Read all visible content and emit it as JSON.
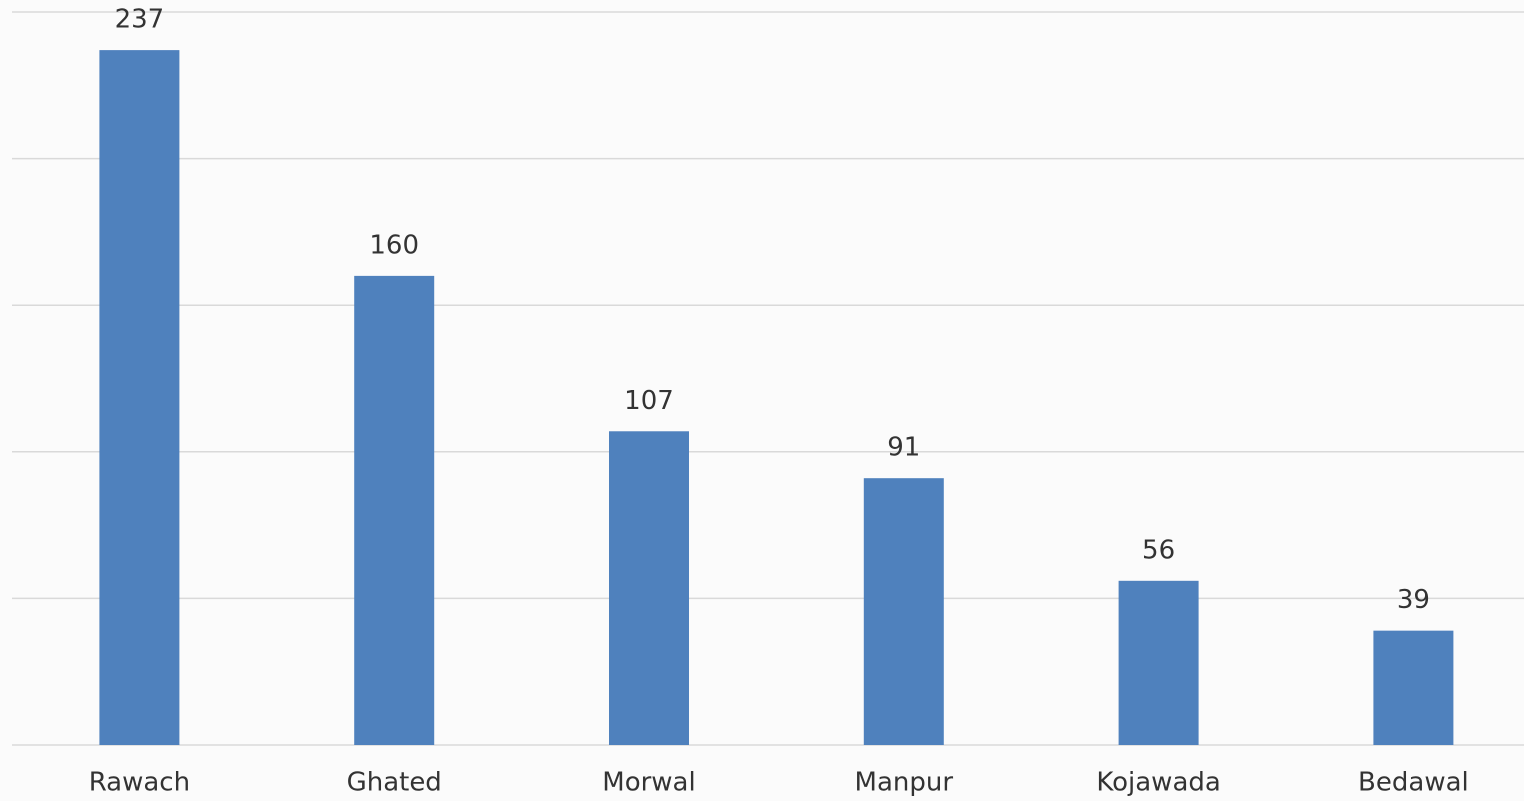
{
  "chart_data": {
    "type": "bar",
    "categories": [
      "Rawach",
      "Ghated",
      "Morwal",
      "Manpur",
      "Kojawada",
      "Bedawal"
    ],
    "values": [
      237,
      160,
      107,
      91,
      56,
      39
    ],
    "color": "#4f81bd",
    "ylim": [
      0,
      250
    ],
    "yticks": [
      0,
      50,
      100,
      150,
      200,
      250
    ],
    "grid": true
  }
}
